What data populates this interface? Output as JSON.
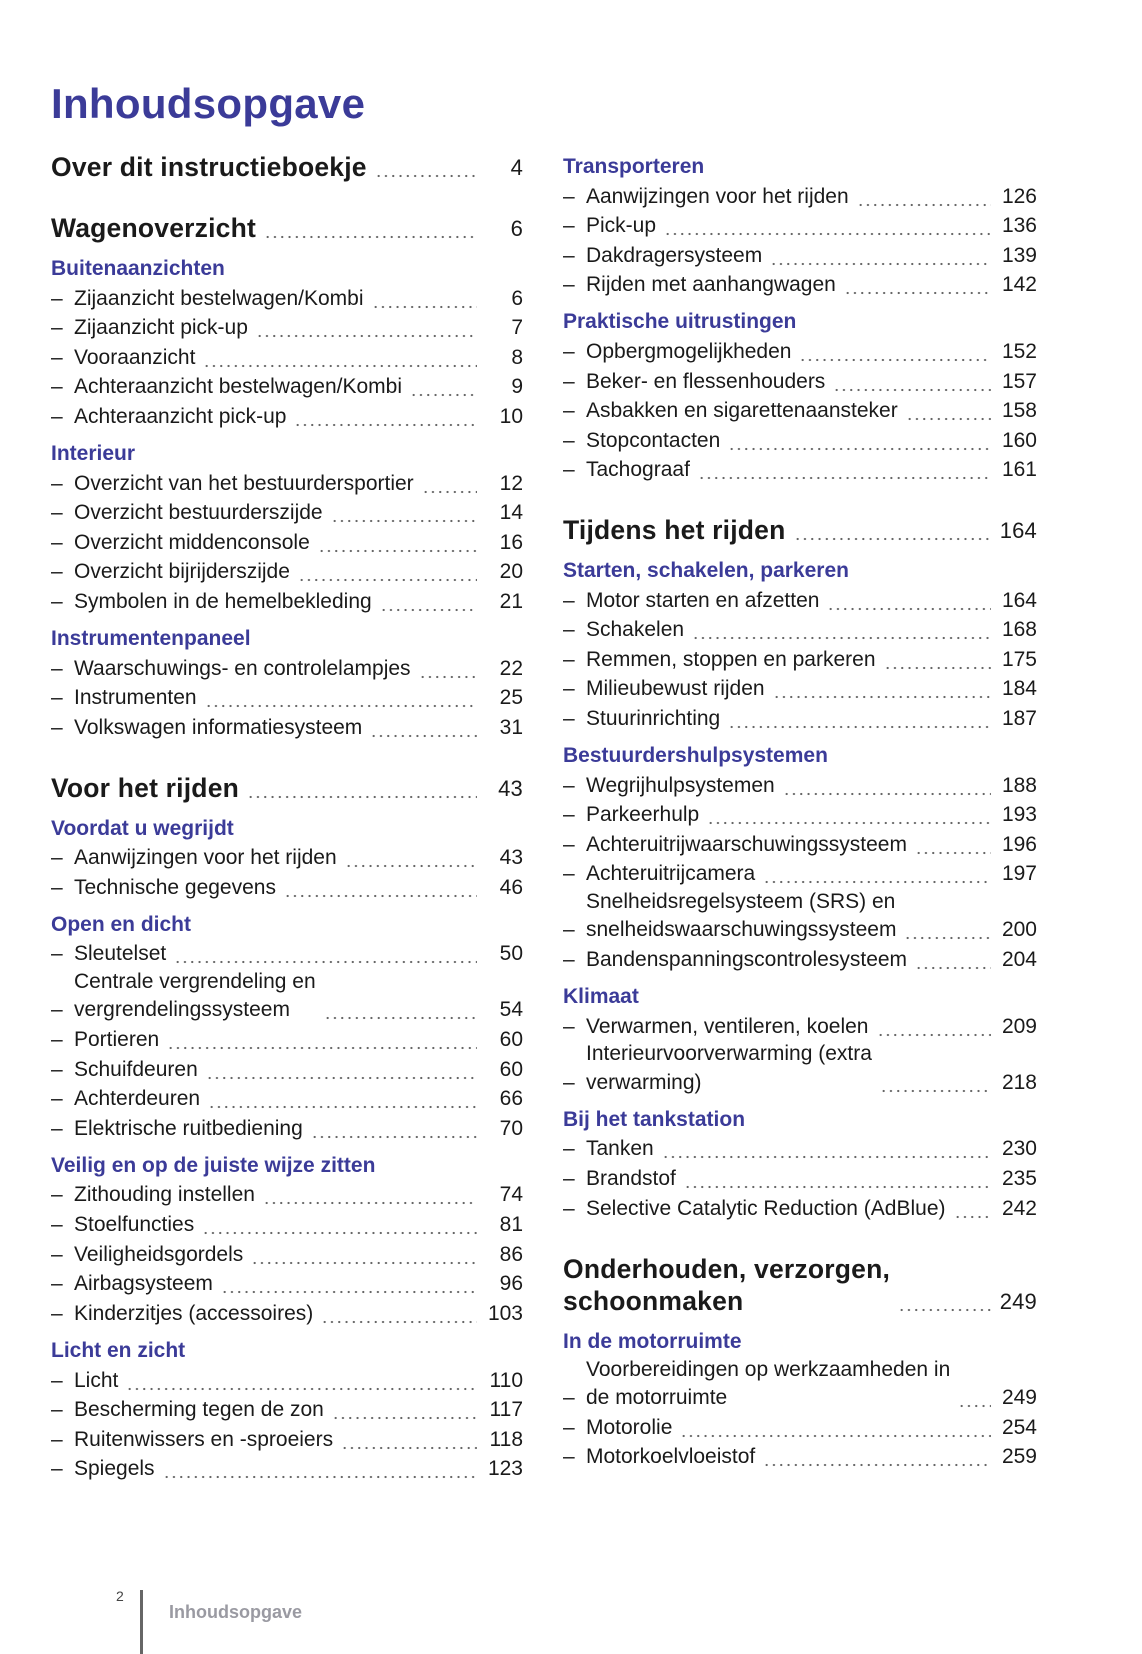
{
  "title": "Inhoudsopgave",
  "columns": [
    [
      {
        "type": "chapter",
        "label": [
          "Over dit instructieboekje"
        ],
        "page": "4"
      },
      {
        "type": "chapter",
        "label": [
          "Wagenoverzicht"
        ],
        "page": "6"
      },
      {
        "type": "section",
        "label": [
          "Buitenaanzichten"
        ]
      },
      {
        "type": "item",
        "label": [
          "Zijaanzicht bestelwagen/Kombi"
        ],
        "page": "6"
      },
      {
        "type": "item",
        "label": [
          "Zijaanzicht pick-up"
        ],
        "page": "7"
      },
      {
        "type": "item",
        "label": [
          "Vooraanzicht"
        ],
        "page": "8"
      },
      {
        "type": "item",
        "label": [
          "Achteraanzicht bestelwagen/Kombi"
        ],
        "page": "9"
      },
      {
        "type": "item",
        "label": [
          "Achteraanzicht pick-up"
        ],
        "page": "10"
      },
      {
        "type": "section",
        "label": [
          "Interieur"
        ]
      },
      {
        "type": "item",
        "label": [
          "Overzicht van het bestuurdersportier"
        ],
        "page": "12"
      },
      {
        "type": "item",
        "label": [
          "Overzicht bestuurderszijde"
        ],
        "page": "14"
      },
      {
        "type": "item",
        "label": [
          "Overzicht middenconsole"
        ],
        "page": "16"
      },
      {
        "type": "item",
        "label": [
          "Overzicht bijrijderszijde"
        ],
        "page": "20"
      },
      {
        "type": "item",
        "label": [
          "Symbolen in de hemelbekleding"
        ],
        "page": "21"
      },
      {
        "type": "section",
        "label": [
          "Instrumentenpaneel"
        ]
      },
      {
        "type": "item",
        "label": [
          "Waarschuwings- en controlelampjes"
        ],
        "page": "22"
      },
      {
        "type": "item",
        "label": [
          "Instrumenten"
        ],
        "page": "25"
      },
      {
        "type": "item",
        "label": [
          "Volkswagen informatiesysteem"
        ],
        "page": "31"
      },
      {
        "type": "chapter",
        "label": [
          "Voor het rijden"
        ],
        "page": "43"
      },
      {
        "type": "section",
        "label": [
          "Voordat u wegrijdt"
        ]
      },
      {
        "type": "item",
        "label": [
          "Aanwijzingen voor het rijden"
        ],
        "page": "43"
      },
      {
        "type": "item",
        "label": [
          "Technische gegevens"
        ],
        "page": "46"
      },
      {
        "type": "section",
        "label": [
          "Open en dicht"
        ]
      },
      {
        "type": "item",
        "label": [
          "Sleutelset"
        ],
        "page": "50"
      },
      {
        "type": "item",
        "label": [
          "Centrale vergrendeling en",
          "vergrendelingssysteem"
        ],
        "page": "54"
      },
      {
        "type": "item",
        "label": [
          "Portieren"
        ],
        "page": "60"
      },
      {
        "type": "item",
        "label": [
          "Schuifdeuren"
        ],
        "page": "60"
      },
      {
        "type": "item",
        "label": [
          "Achterdeuren"
        ],
        "page": "66"
      },
      {
        "type": "item",
        "label": [
          "Elektrische ruitbediening"
        ],
        "page": "70"
      },
      {
        "type": "section",
        "label": [
          "Veilig en op de juiste wijze zitten"
        ]
      },
      {
        "type": "item",
        "label": [
          "Zithouding instellen"
        ],
        "page": "74"
      },
      {
        "type": "item",
        "label": [
          "Stoelfuncties"
        ],
        "page": "81"
      },
      {
        "type": "item",
        "label": [
          "Veiligheidsgordels"
        ],
        "page": "86"
      },
      {
        "type": "item",
        "label": [
          "Airbagsysteem"
        ],
        "page": "96"
      },
      {
        "type": "item",
        "label": [
          "Kinderzitjes (accessoires)"
        ],
        "page": "103"
      },
      {
        "type": "section",
        "label": [
          "Licht en zicht"
        ]
      },
      {
        "type": "item",
        "label": [
          "Licht"
        ],
        "page": "110"
      },
      {
        "type": "item",
        "label": [
          "Bescherming tegen de zon"
        ],
        "page": "117"
      },
      {
        "type": "item",
        "label": [
          "Ruitenwissers en -sproeiers"
        ],
        "page": "118"
      },
      {
        "type": "item",
        "label": [
          "Spiegels"
        ],
        "page": "123"
      }
    ],
    [
      {
        "type": "section",
        "label": [
          "Transporteren"
        ]
      },
      {
        "type": "item",
        "label": [
          "Aanwijzingen voor het rijden"
        ],
        "page": "126"
      },
      {
        "type": "item",
        "label": [
          "Pick-up"
        ],
        "page": "136"
      },
      {
        "type": "item",
        "label": [
          "Dakdragersysteem"
        ],
        "page": "139"
      },
      {
        "type": "item",
        "label": [
          "Rijden met aanhangwagen"
        ],
        "page": "142"
      },
      {
        "type": "section",
        "label": [
          "Praktische uitrustingen"
        ]
      },
      {
        "type": "item",
        "label": [
          "Opbergmogelijkheden"
        ],
        "page": "152"
      },
      {
        "type": "item",
        "label": [
          "Beker- en flessenhouders"
        ],
        "page": "157"
      },
      {
        "type": "item",
        "label": [
          "Asbakken en sigarettenaansteker"
        ],
        "page": "158"
      },
      {
        "type": "item",
        "label": [
          "Stopcontacten"
        ],
        "page": "160"
      },
      {
        "type": "item",
        "label": [
          "Tachograaf"
        ],
        "page": "161"
      },
      {
        "type": "chapter",
        "label": [
          "Tijdens het rijden"
        ],
        "page": "164"
      },
      {
        "type": "section",
        "label": [
          "Starten, schakelen, parkeren"
        ]
      },
      {
        "type": "item",
        "label": [
          "Motor starten en afzetten"
        ],
        "page": "164"
      },
      {
        "type": "item",
        "label": [
          "Schakelen"
        ],
        "page": "168"
      },
      {
        "type": "item",
        "label": [
          "Remmen, stoppen en parkeren"
        ],
        "page": "175"
      },
      {
        "type": "item",
        "label": [
          "Milieubewust rijden"
        ],
        "page": "184"
      },
      {
        "type": "item",
        "label": [
          "Stuurinrichting"
        ],
        "page": "187"
      },
      {
        "type": "section",
        "label": [
          "Bestuurdershulpsystemen"
        ]
      },
      {
        "type": "item",
        "label": [
          "Wegrijhulpsystemen"
        ],
        "page": "188"
      },
      {
        "type": "item",
        "label": [
          "Parkeerhulp"
        ],
        "page": "193"
      },
      {
        "type": "item",
        "label": [
          "Achteruitrijwaarschuwingssysteem"
        ],
        "page": "196"
      },
      {
        "type": "item",
        "label": [
          "Achteruitrijcamera"
        ],
        "page": "197"
      },
      {
        "type": "item",
        "label": [
          "Snelheidsregelsysteem (SRS) en",
          "snelheidswaarschuwingssysteem"
        ],
        "page": "200"
      },
      {
        "type": "item",
        "label": [
          "Bandenspanningscontrolesysteem"
        ],
        "page": "204"
      },
      {
        "type": "section",
        "label": [
          "Klimaat"
        ]
      },
      {
        "type": "item",
        "label": [
          "Verwarmen, ventileren, koelen"
        ],
        "page": "209"
      },
      {
        "type": "item",
        "label": [
          "Interieurvoorverwarming (extra",
          "verwarming)"
        ],
        "page": "218"
      },
      {
        "type": "section",
        "label": [
          "Bij het tankstation"
        ]
      },
      {
        "type": "item",
        "label": [
          "Tanken"
        ],
        "page": "230"
      },
      {
        "type": "item",
        "label": [
          "Brandstof"
        ],
        "page": "235"
      },
      {
        "type": "item",
        "label": [
          "Selective Catalytic Reduction (AdBlue)"
        ],
        "page": "242"
      },
      {
        "type": "chapter",
        "label": [
          "Onderhouden, verzorgen,",
          "schoonmaken"
        ],
        "page": "249"
      },
      {
        "type": "section",
        "label": [
          "In de motorruimte"
        ]
      },
      {
        "type": "item",
        "label": [
          "Voorbereidingen op werkzaamheden in",
          "de motorruimte"
        ],
        "page": "249"
      },
      {
        "type": "item",
        "label": [
          "Motorolie"
        ],
        "page": "254"
      },
      {
        "type": "item",
        "label": [
          "Motorkoelvloeistof"
        ],
        "page": "259"
      }
    ]
  ],
  "footer": {
    "page_number": "2",
    "section": "Inhoudsopgave"
  },
  "colors": {
    "accent": "#3b3b98",
    "text": "#1a1a1a",
    "footer": "#9a9aa2"
  }
}
